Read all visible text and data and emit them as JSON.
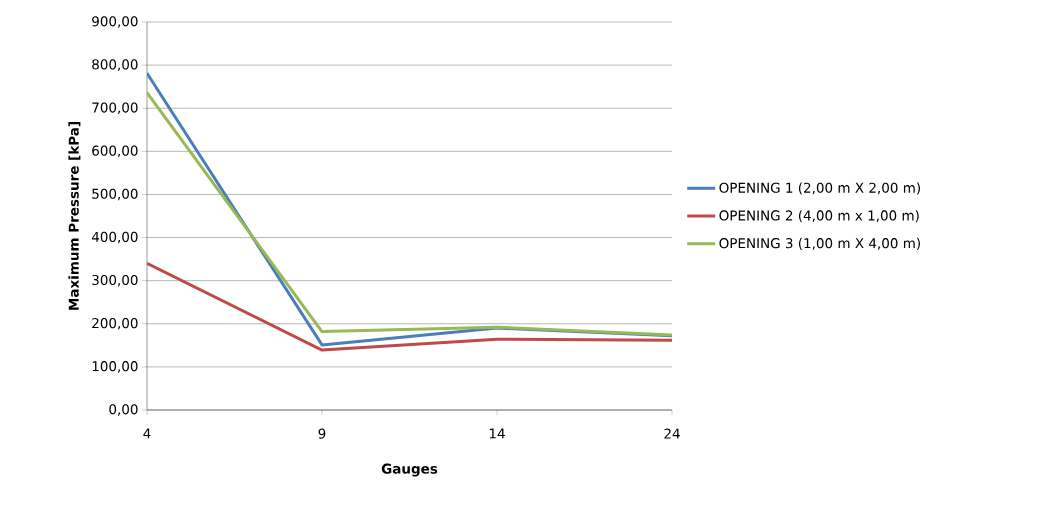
{
  "chart_data": {
    "type": "line",
    "xlabel": "Gauges",
    "ylabel": "Maximum Pressure [kPa]",
    "categories": [
      "4",
      "9",
      "14",
      "24"
    ],
    "series": [
      {
        "name": "OPENING 1 (2,00 m X 2,00 m)",
        "color": "#4a7ebb",
        "values": [
          781,
          151,
          190,
          172
        ]
      },
      {
        "name": "OPENING 2 (4,00 m x 1,00 m)",
        "color": "#be4b48",
        "values": [
          340,
          139,
          164,
          162
        ]
      },
      {
        "name": "OPENING 3 (1,00 m X 4,00 m)",
        "color": "#98b954",
        "values": [
          736,
          182,
          192,
          174
        ]
      }
    ],
    "ylim": [
      0,
      900
    ],
    "yticks": [
      {
        "value": 0,
        "label": "0,00"
      },
      {
        "value": 100,
        "label": "100,00"
      },
      {
        "value": 200,
        "label": "200,00"
      },
      {
        "value": 300,
        "label": "300,00"
      },
      {
        "value": 400,
        "label": "400,00"
      },
      {
        "value": 500,
        "label": "500,00"
      },
      {
        "value": 600,
        "label": "600,00"
      },
      {
        "value": 700,
        "label": "700,00"
      },
      {
        "value": 800,
        "label": "800,00"
      },
      {
        "value": 900,
        "label": "900,00"
      }
    ],
    "grid": "y",
    "legend": "right",
    "marker": "none",
    "line_style": "solid"
  }
}
